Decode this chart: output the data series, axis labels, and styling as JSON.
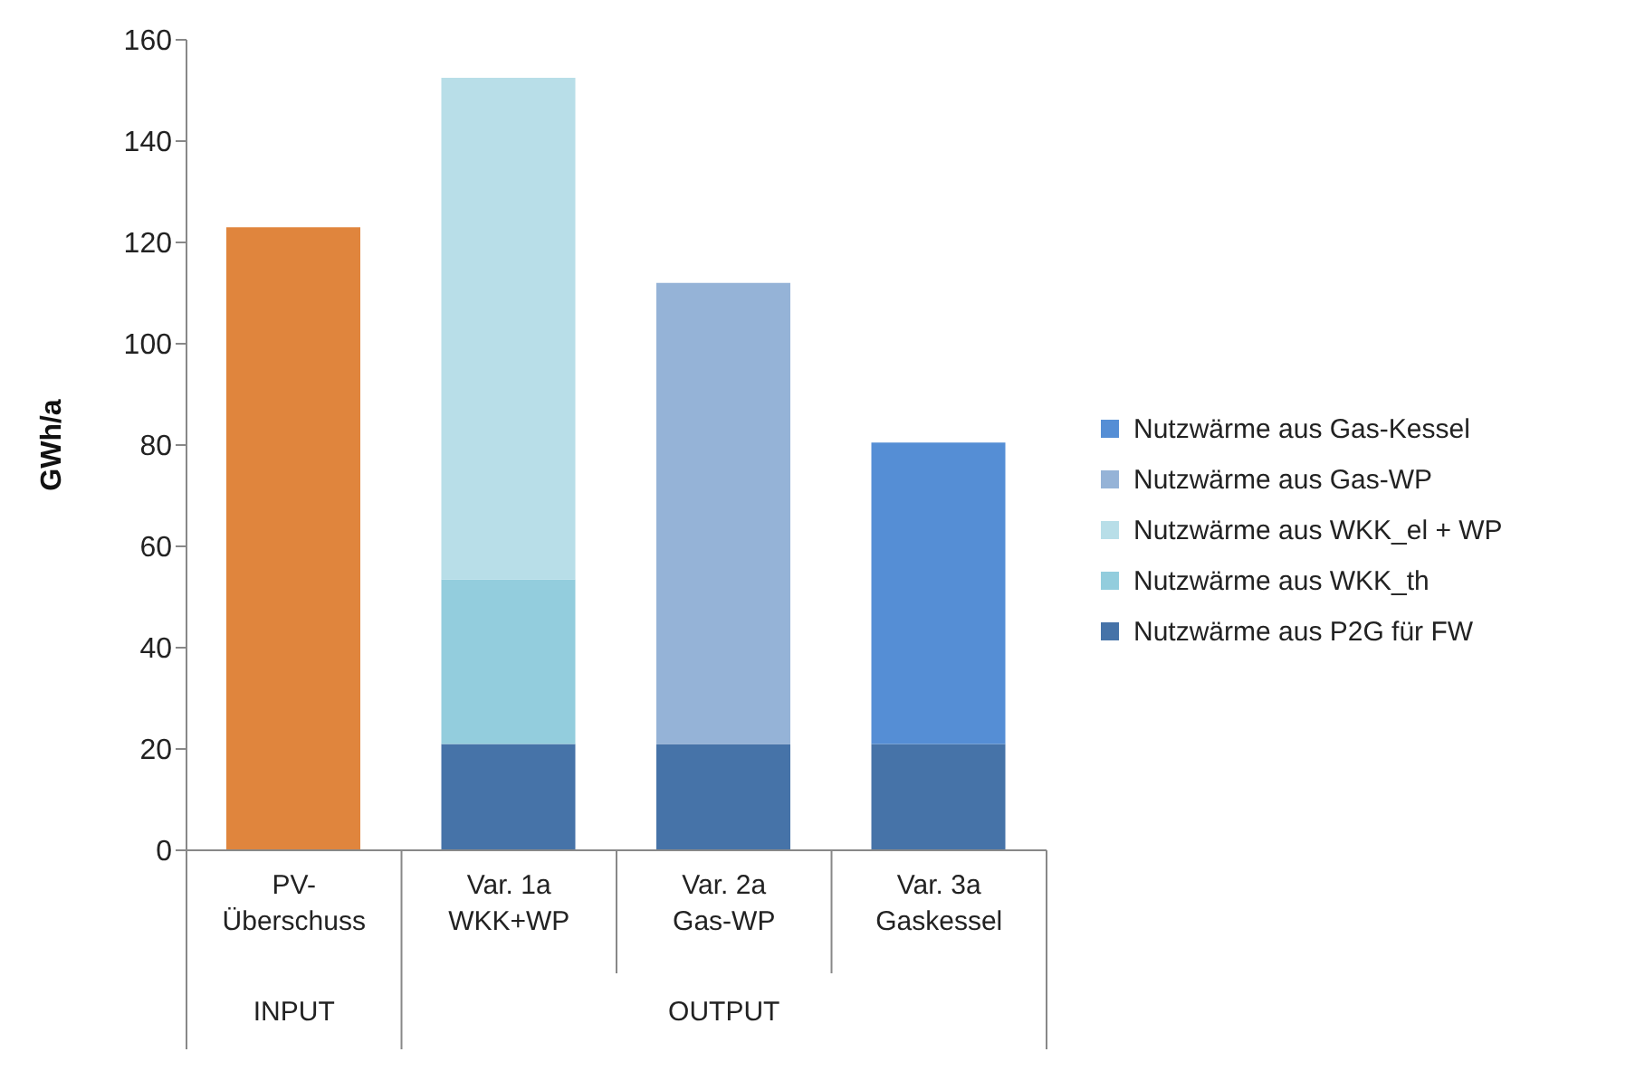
{
  "chart_data": {
    "type": "bar",
    "stacked": true,
    "ylabel": "GWh/a",
    "categories": [
      "PV-\nÜberschuss",
      "Var. 1a\nWKK+WP",
      "Var. 2a\nGas-WP",
      "Var. 3a\nGaskessel"
    ],
    "series": [
      {
        "color": "#e0853d",
        "values": [
          123,
          null,
          null,
          null
        ]
      },
      {
        "name": "Nutzwärme aus P2G für FW",
        "color": "#4673a8",
        "values": [
          null,
          21,
          21,
          21
        ]
      },
      {
        "name": "Nutzwärme aus WKK_th",
        "color": "#93cddd",
        "values": [
          null,
          32.5,
          null,
          null
        ]
      },
      {
        "name": "Nutzwärme aus WKK_el + WP",
        "color": "#b8dee8",
        "values": [
          null,
          99,
          null,
          null
        ]
      },
      {
        "name": "Nutzwärme aus Gas-WP",
        "color": "#95b3d7",
        "values": [
          null,
          null,
          91,
          null
        ]
      },
      {
        "name": "Nutzwärme aus Gas-Kessel",
        "color": "#558ed5",
        "values": [
          null,
          null,
          null,
          59.5
        ]
      }
    ],
    "annotations": [
      "INPUT",
      "OUTPUT"
    ],
    "ylim": [
      0,
      160
    ],
    "yticks": [
      0,
      20,
      40,
      60,
      80,
      100,
      120,
      140,
      160
    ],
    "legend": "right"
  }
}
